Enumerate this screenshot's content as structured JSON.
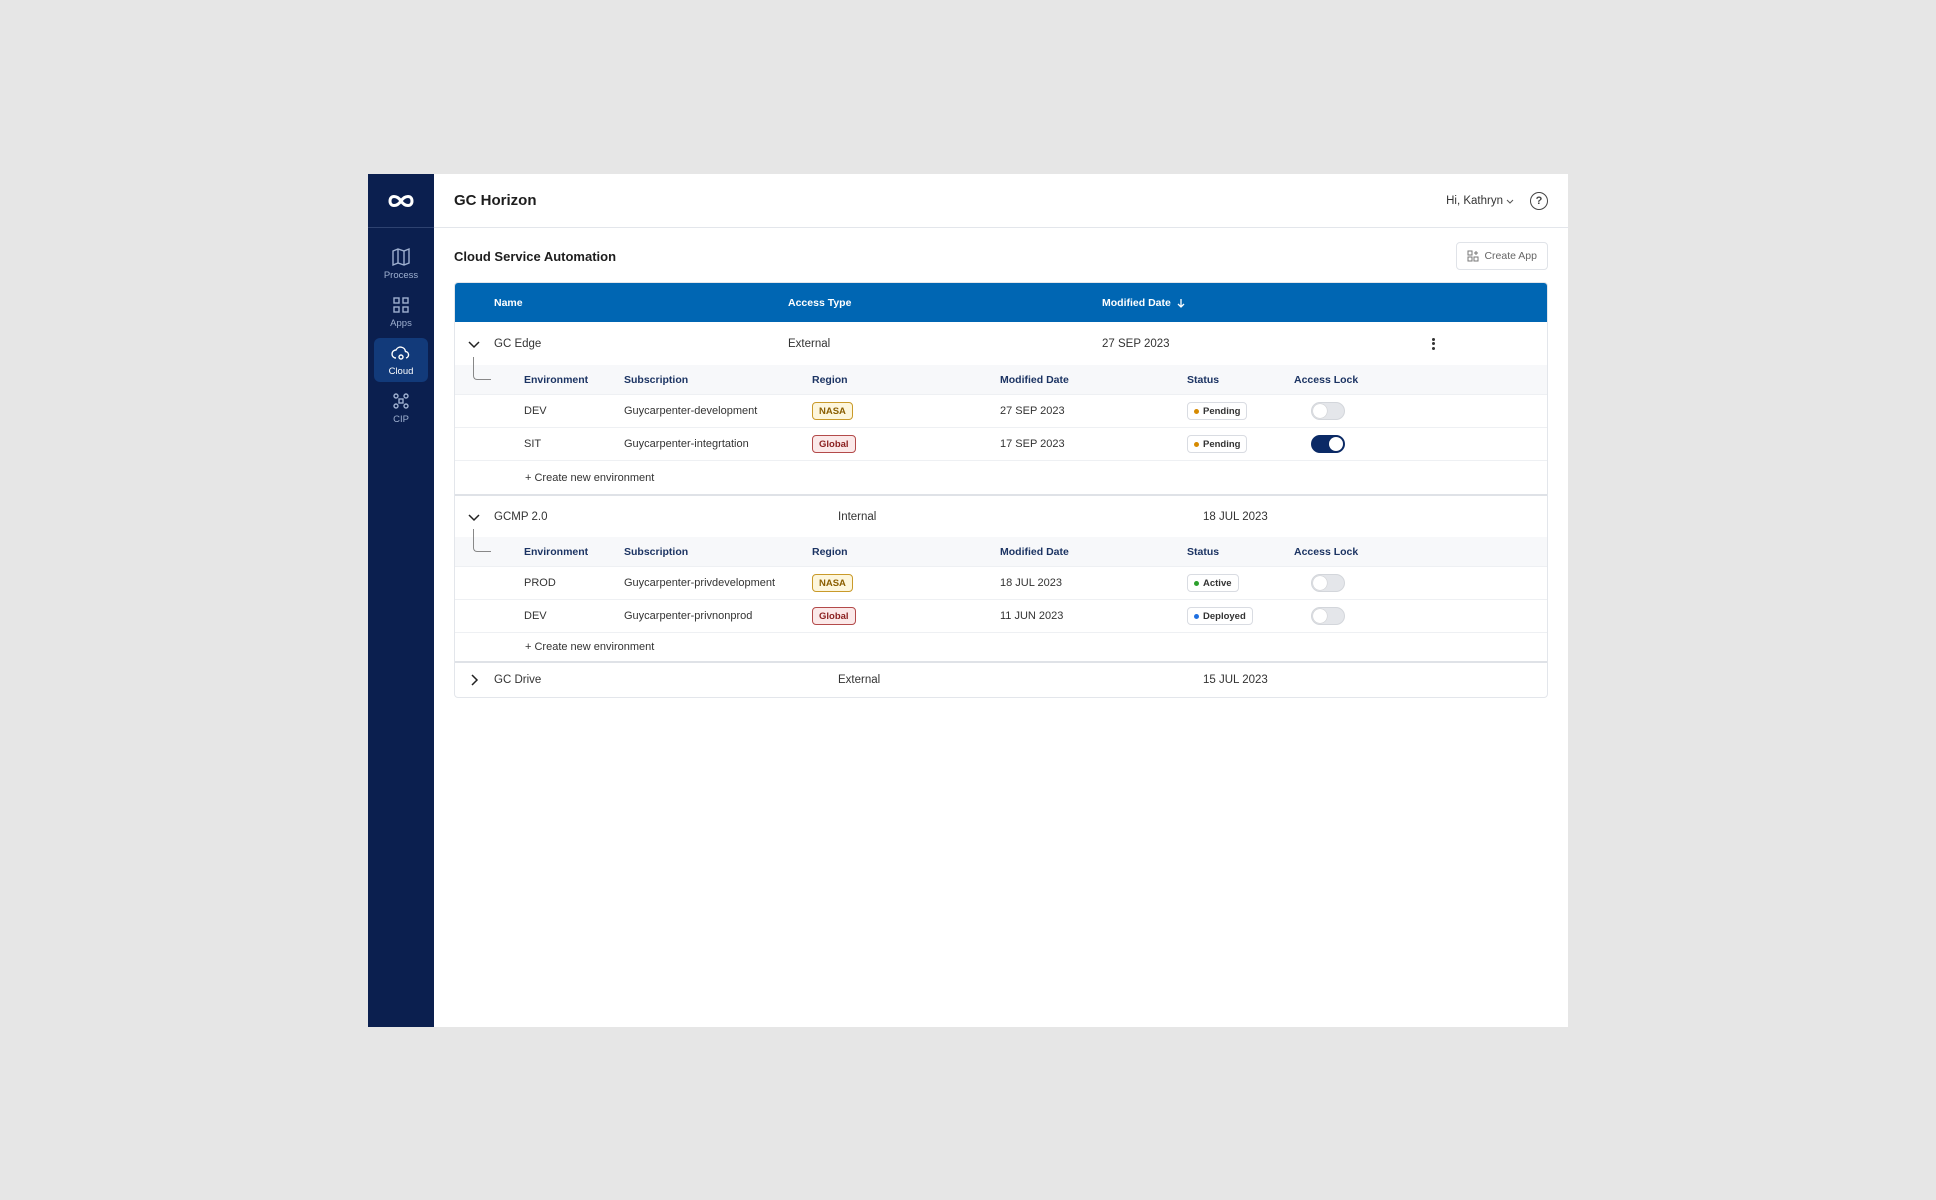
{
  "header": {
    "title": "GC Horizon",
    "user": "Hi, Kathryn",
    "help": "?"
  },
  "sidebar": {
    "items": [
      {
        "label": "Process",
        "icon": "map-icon"
      },
      {
        "label": "Apps",
        "icon": "grid-icon"
      },
      {
        "label": "Cloud",
        "icon": "cloud-gear-icon",
        "active": true
      },
      {
        "label": "CIP",
        "icon": "cip-icon"
      }
    ]
  },
  "page": {
    "title": "Cloud Service Automation",
    "create_app": "Create App"
  },
  "table": {
    "columns": {
      "name": "Name",
      "access_type": "Access Type",
      "modified_date": "Modified Date"
    },
    "sub_columns": {
      "environment": "Environment",
      "subscription": "Subscription",
      "region": "Region",
      "modified_date": "Modified Date",
      "status": "Status",
      "access_lock": "Access Lock"
    },
    "create_env": "+ Create new environment",
    "groups": [
      {
        "name": "GC Edge",
        "access_type": "External",
        "modified": "27 SEP 2023",
        "expanded": true,
        "envs": [
          {
            "env": "DEV",
            "subscription": "Guycarpenter-development",
            "region": "NASA",
            "modified": "27 SEP 2023",
            "status": "Pending",
            "lock": false
          },
          {
            "env": "SIT",
            "subscription": "Guycarpenter-integrtation",
            "region": "Global",
            "modified": "17 SEP 2023",
            "status": "Pending",
            "lock": true
          }
        ]
      },
      {
        "name": "GCMP 2.0",
        "access_type": "Internal",
        "modified": "18 JUL 2023",
        "expanded": true,
        "envs": [
          {
            "env": "PROD",
            "subscription": "Guycarpenter-privdevelopment",
            "region": "NASA",
            "modified": "18 JUL 2023",
            "status": "Active",
            "lock": false
          },
          {
            "env": "DEV",
            "subscription": "Guycarpenter-privnonprod",
            "region": "Global",
            "modified": "11 JUN 2023",
            "status": "Deployed",
            "lock": false
          }
        ]
      },
      {
        "name": "GC Drive",
        "access_type": "External",
        "modified": "15 JUL 2023",
        "expanded": false,
        "envs": []
      }
    ]
  },
  "colors": {
    "sidebar": "#0b1f4f",
    "header_bar": "#0066b3",
    "pending": "#d68a00",
    "active": "#2ca02c",
    "deployed": "#1f6fe0"
  }
}
